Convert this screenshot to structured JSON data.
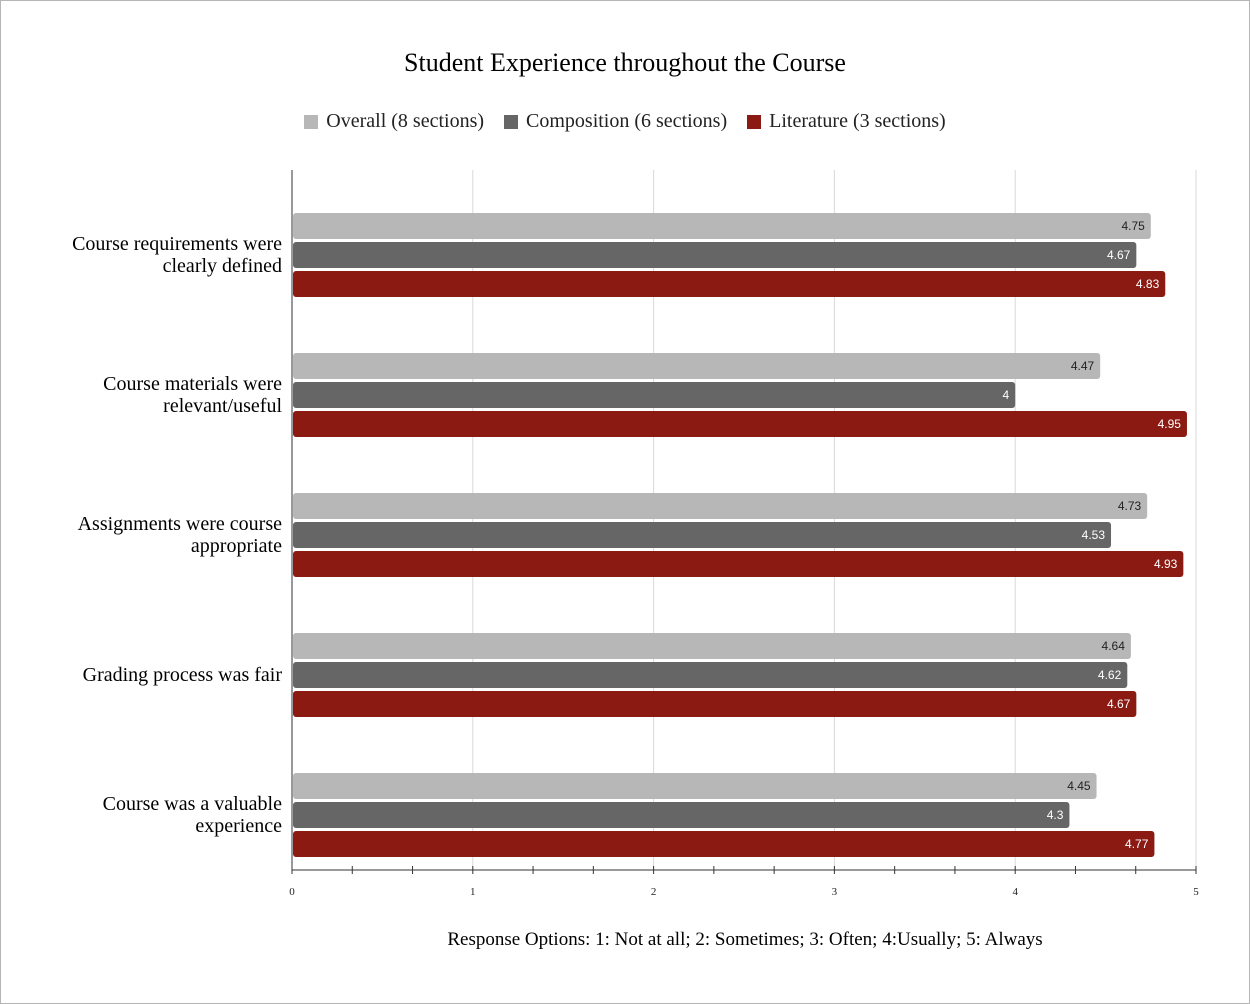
{
  "chart_data": {
    "type": "bar",
    "orientation": "horizontal",
    "title": "Student Experience throughout the Course",
    "xlabel": "Response Options: 1: Not at all; 2: Sometimes; 3: Often; 4:Usually; 5: Always",
    "ylabel": "",
    "xlim": [
      0,
      5
    ],
    "x_ticks": [
      "0",
      "1",
      "2",
      "3",
      "4",
      "5"
    ],
    "legend_position": "top-center",
    "grid": true,
    "categories": [
      [
        "Course requirements were",
        "clearly defined"
      ],
      [
        "Course materials were",
        "relevant/useful"
      ],
      [
        "Assignments were course",
        "appropriate"
      ],
      [
        "Grading process was fair"
      ],
      [
        "Course was a valuable",
        "experience"
      ]
    ],
    "series": [
      {
        "name": "Overall (8 sections)",
        "color": "#b7b7b7",
        "label_color": "#222222",
        "values": [
          4.75,
          4.47,
          4.73,
          4.64,
          4.45
        ],
        "labels": [
          "4.75",
          "4.47",
          "4.73",
          "4.64",
          "4.45"
        ]
      },
      {
        "name": "Composition (6 sections)",
        "color": "#666666",
        "label_color": "#ffffff",
        "values": [
          4.67,
          4,
          4.53,
          4.62,
          4.3
        ],
        "labels": [
          "4.67",
          "4",
          "4.53",
          "4.62",
          "4.3"
        ]
      },
      {
        "name": "Literature (3 sections)",
        "color": "#8b1a13",
        "label_color": "#ffffff",
        "values": [
          4.83,
          4.95,
          4.93,
          4.67,
          4.77
        ],
        "labels": [
          "4.83",
          "4.95",
          "4.93",
          "4.67",
          "4.77"
        ]
      }
    ]
  }
}
